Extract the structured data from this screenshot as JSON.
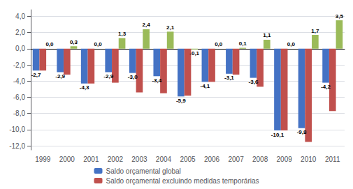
{
  "chart_data": {
    "type": "bar",
    "categories": [
      "1999",
      "2000",
      "2001",
      "2002",
      "2003",
      "2004",
      "2005",
      "2006",
      "2007",
      "2008",
      "2009",
      "2010",
      "2011"
    ],
    "series": [
      {
        "name": "Saldo orçamental global",
        "color": "#4472C4",
        "values": [
          -2.7,
          -2.9,
          -4.3,
          -2.9,
          -3.0,
          -3.4,
          -5.9,
          -4.1,
          -3.1,
          -3.6,
          -10.1,
          -9.8,
          -4.2
        ],
        "value_labels": [
          "-2,7",
          "-2,9",
          "-4,3",
          "-2,9",
          "-3,0",
          "-3,4",
          "-5,9",
          "-4,1",
          "-3,1",
          "-3,6",
          "-10,1",
          "-9,8",
          "-4,2"
        ]
      },
      {
        "name": "Saldo orçamental excluindo medidas temporárias",
        "color": "#C0504D",
        "values": [
          -2.7,
          -3.2,
          -4.3,
          -4.2,
          -5.4,
          -5.5,
          -5.8,
          -4.1,
          -3.2,
          -4.7,
          -10.1,
          -11.5,
          -7.7
        ]
      },
      {
        "color": "#9BBB59",
        "values": [
          0.0,
          0.3,
          0.0,
          1.3,
          2.4,
          2.1,
          -0.1,
          0.0,
          0.1,
          1.1,
          0.0,
          1.7,
          3.5
        ],
        "value_labels": [
          "0,0",
          "0,3",
          "0,0",
          "1,3",
          "2,4",
          "2,1",
          "-0,1",
          "0,0",
          "0,1",
          "1,1",
          "0,0",
          "1,7",
          "3,5"
        ]
      }
    ],
    "ylim": [
      -12.5,
      4.8
    ],
    "yticks": [
      {
        "value": -12.0,
        "label": "-12,0"
      },
      {
        "value": -10.0,
        "label": "-10,0"
      },
      {
        "value": -8.0,
        "label": "-8,0"
      },
      {
        "value": -6.0,
        "label": "-6,0"
      },
      {
        "value": -4.0,
        "label": "-4,0"
      },
      {
        "value": -2.0,
        "label": "-2,0"
      },
      {
        "value": 0.0,
        "label": "0,0"
      },
      {
        "value": 2.0,
        "label": "2,0"
      },
      {
        "value": 4.0,
        "label": "4,0"
      }
    ],
    "grid": true,
    "legend": "bottom",
    "data_labels": true
  }
}
